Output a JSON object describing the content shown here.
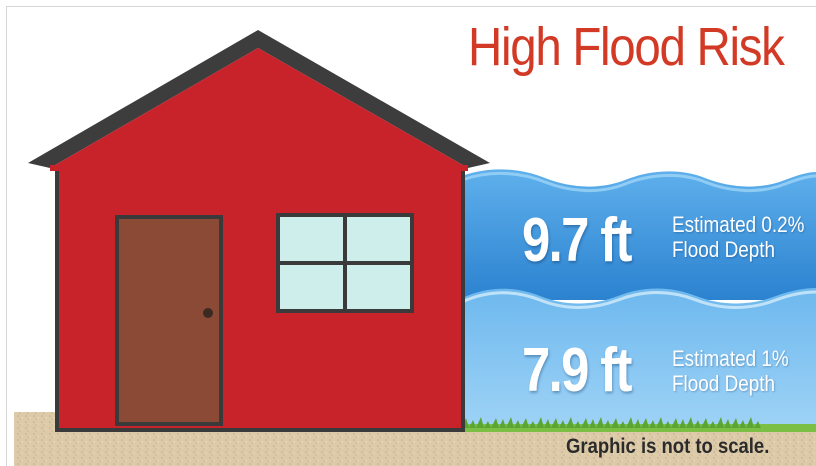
{
  "title": "High Flood Risk",
  "flood_levels": [
    {
      "depth": "9.7 ft",
      "label_line1": "Estimated 0.2%",
      "label_line2": "Flood Depth"
    },
    {
      "depth": "7.9 ft",
      "label_line1": "Estimated 1%",
      "label_line2": "Flood Depth"
    }
  ],
  "footnote": "Graphic is not to scale.",
  "colors": {
    "title": "#d23a26",
    "house_wall": "#c8222b",
    "roof_trim": "#3d3d3d",
    "door": "#8a4a36",
    "window": "#cdeeea",
    "water_deep": "#2f86d3",
    "water_shallow": "#7cc0ef",
    "ground": "#d9c7a4",
    "grass": "#6fb43c"
  },
  "icons": [
    "house-illustration",
    "water-waves",
    "grass-strip"
  ]
}
